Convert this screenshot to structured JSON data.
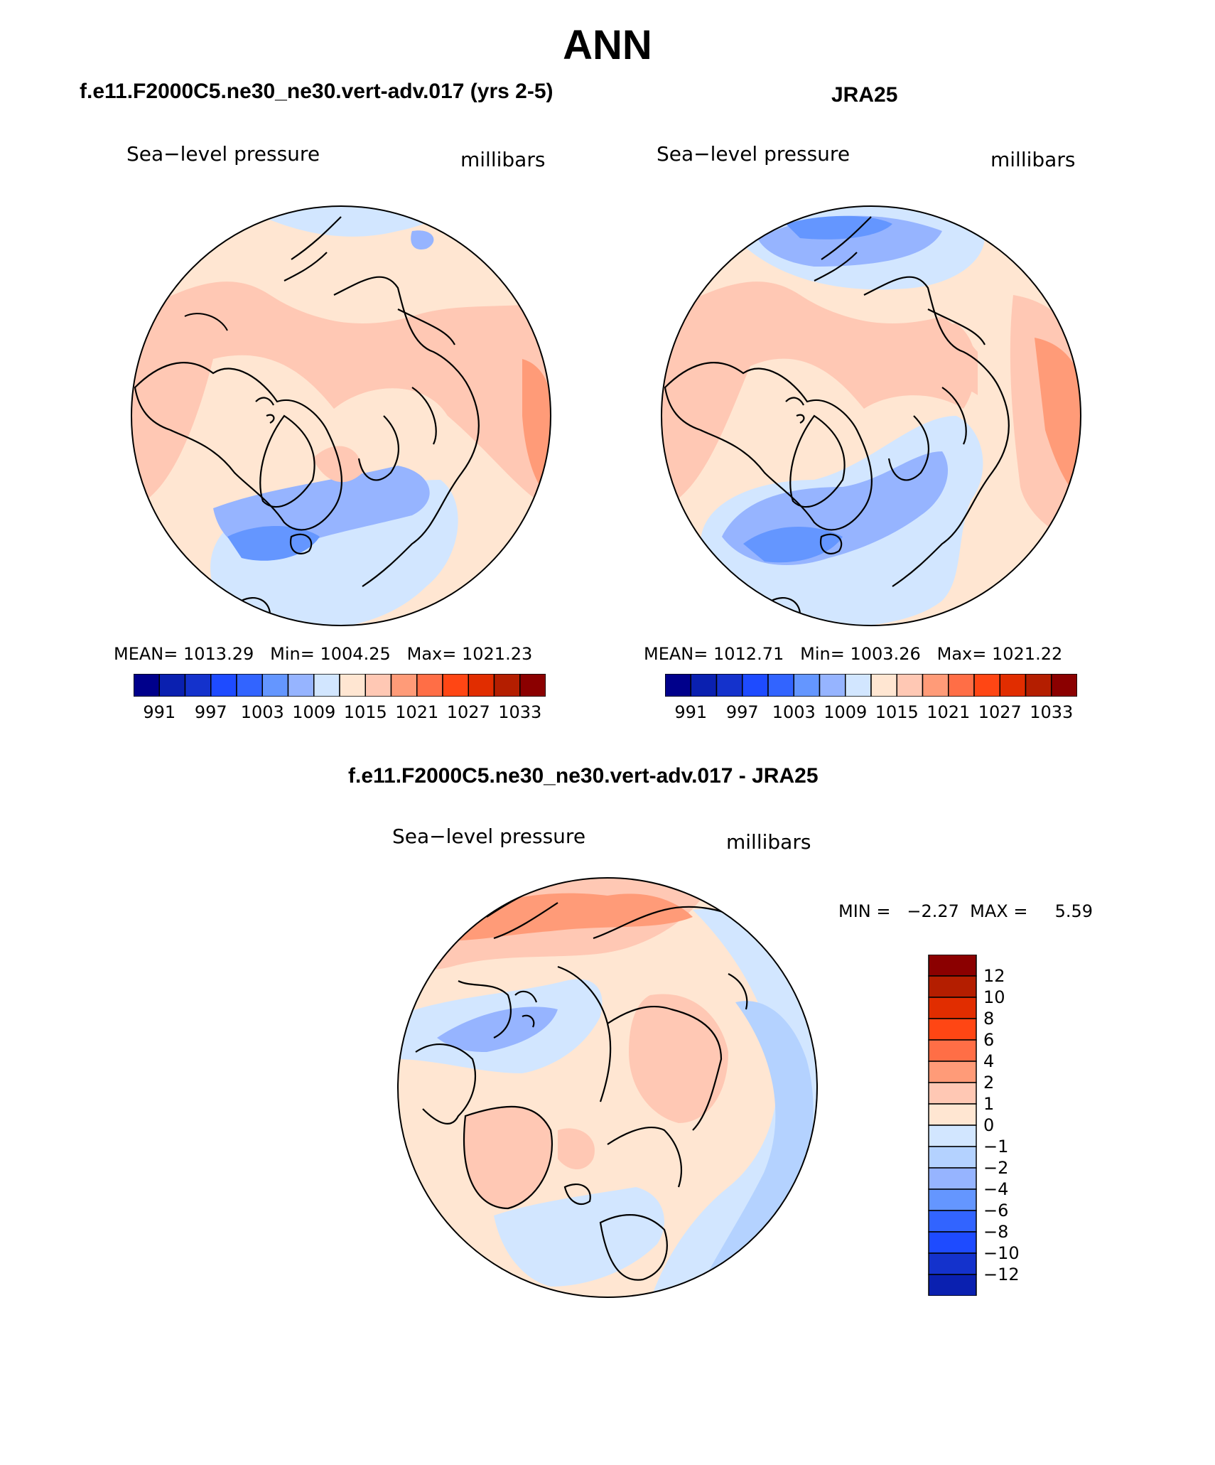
{
  "title": "ANN",
  "panels": {
    "model": {
      "title": "f.e11.F2000C5.ne30_ne30.vert-adv.017 (yrs 2-5)",
      "variable": "Sea−level pressure",
      "units": "millibars",
      "mean_label": "MEAN=",
      "mean": "1013.29",
      "min_label": "Min=",
      "min": "1004.25",
      "max_label": "Max=",
      "max": "1021.23"
    },
    "obs": {
      "title": "JRA25",
      "variable": "Sea−level pressure",
      "units": "millibars",
      "mean_label": "MEAN=",
      "mean": "1012.71",
      "min_label": "Min=",
      "min": "1003.26",
      "max_label": "Max=",
      "max": "1021.22"
    },
    "diff": {
      "title": "f.e11.F2000C5.ne30_ne30.vert-adv.017 - JRA25",
      "variable": "Sea−level pressure",
      "units": "millibars",
      "minmax_text": "MIN =   −2.27  MAX =     5.59"
    }
  },
  "colorbar_horizontal": {
    "colors": [
      "#00008b",
      "#0a20b0",
      "#1432cc",
      "#1e4bff",
      "#3264ff",
      "#6496ff",
      "#96b4ff",
      "#d2e6ff",
      "#ffe6d2",
      "#ffc8b4",
      "#ff9b78",
      "#ff6e46",
      "#ff4614",
      "#e12d00",
      "#b41e00",
      "#8b0000"
    ],
    "tick_labels": [
      "991",
      "997",
      "1003",
      "1009",
      "1015",
      "1021",
      "1027",
      "1033"
    ]
  },
  "colorbar_vertical": {
    "colors_top_to_bottom": [
      "#8b0000",
      "#b41e00",
      "#e12d00",
      "#ff4614",
      "#ff6e46",
      "#ff9b78",
      "#ffc8b4",
      "#ffe6d2",
      "#d2e6ff",
      "#b4d2ff",
      "#96b4ff",
      "#6496ff",
      "#3264ff",
      "#1e4bff",
      "#1432cc",
      "#0a20b0"
    ],
    "tick_labels": [
      "12",
      "10",
      "8",
      "6",
      "4",
      "2",
      "1",
      "0",
      "−1",
      "−2",
      "−4",
      "−6",
      "−8",
      "−10",
      "−12"
    ]
  }
}
